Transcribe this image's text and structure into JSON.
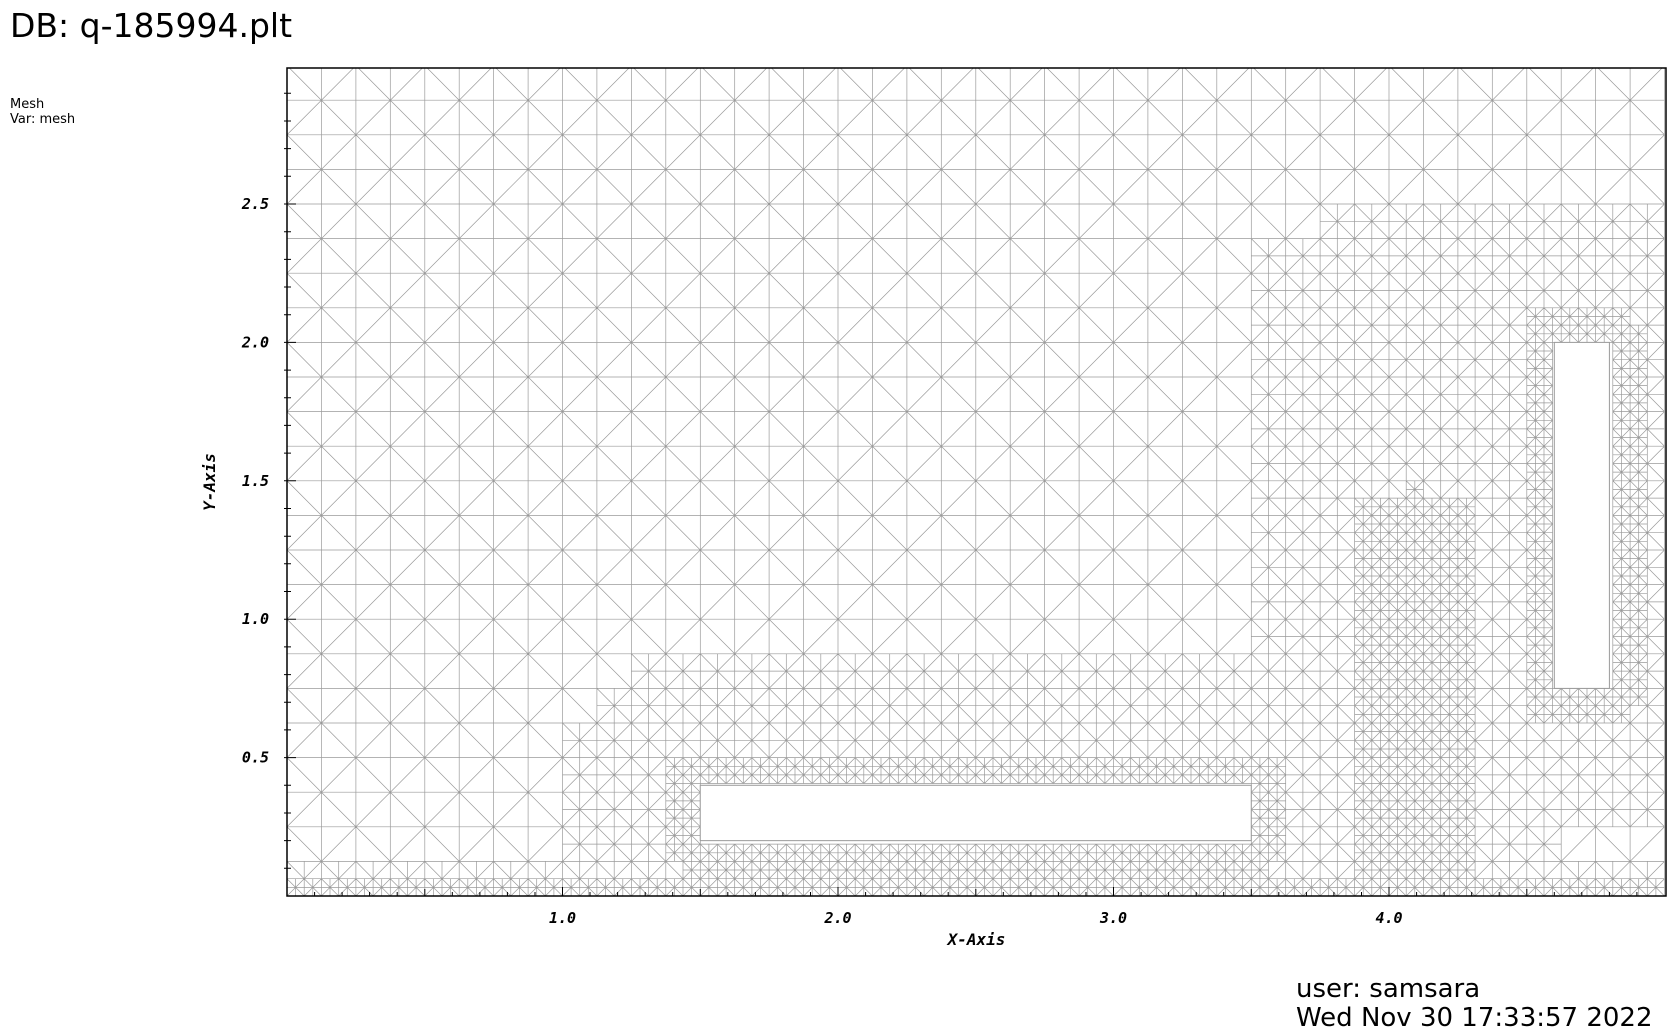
{
  "header": {
    "db_title": "DB: q-185994.plt"
  },
  "legend": {
    "plot_type": "Mesh",
    "variable": "Var: mesh"
  },
  "chart_data": {
    "type": "mesh",
    "xlabel": "X-Axis",
    "ylabel": "Y-Axis",
    "xlim": [
      0.0,
      5.0
    ],
    "ylim": [
      0.0,
      3.0
    ],
    "x_major_ticks": [
      1.0,
      2.0,
      3.0,
      4.0
    ],
    "x_tick_labels": [
      "1.0",
      "2.0",
      "3.0",
      "4.0"
    ],
    "y_major_ticks": [
      0.5,
      1.0,
      1.5,
      2.0,
      2.5
    ],
    "y_tick_labels": [
      "0.5",
      "1.0",
      "1.5",
      "2.0",
      "2.5"
    ],
    "minor_tick_step": 0.1,
    "holes": [
      {
        "x0": 1.5,
        "x1": 3.5,
        "y0": 0.2,
        "y1": 0.4
      },
      {
        "x0": 4.6,
        "x1": 4.8,
        "y0": 0.75,
        "y1": 2.0
      }
    ],
    "mesh_color": "#9a9a9a",
    "grid": false
  },
  "footer": {
    "user": "user: samsara",
    "date": "Wed Nov 30 17:33:57 2022"
  }
}
